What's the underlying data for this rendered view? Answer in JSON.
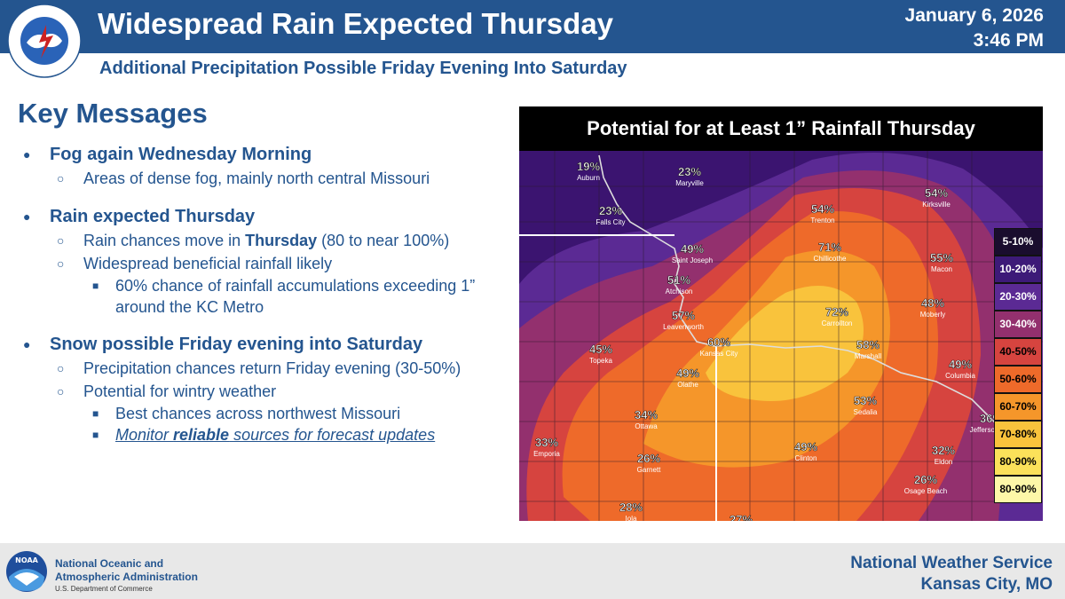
{
  "header": {
    "title": "Widespread Rain Expected Thursday",
    "subtitle": "Additional Precipitation Possible Friday Evening Into Saturday",
    "date": "January 6, 2026",
    "time": "3:46 PM",
    "logo_text": "NATIONAL WEATHER SERVICE"
  },
  "key_messages": {
    "title": "Key Messages",
    "fog": {
      "heading": "Fog again Wednesday Morning",
      "detail": "Areas of dense fog, mainly north central Missouri"
    },
    "rain": {
      "heading": "Rain expected Thursday",
      "chances_pre": "Rain chances move in ",
      "chances_bold": "Thursday",
      "chances_post": " (80 to near 100%)",
      "beneficial": "Widespread beneficial rainfall likely",
      "accumulation": "60% chance of rainfall accumulations exceeding 1” around the KC Metro"
    },
    "snow": {
      "heading": "Snow possible Friday evening into Saturday",
      "precip": "Precipitation chances return Friday evening (30-50%)",
      "wintry": "Potential for wintry weather",
      "best": "Best chances across northwest Missouri",
      "monitor_pre": "Monitor ",
      "monitor_bold": "reliable",
      "monitor_post": " sources for forecast updates"
    }
  },
  "map": {
    "title": "Potential for at Least 1” Rainfall Thursday",
    "legend": [
      {
        "label": "5-10%",
        "color": "#1a0d2e",
        "text": "#ffffff"
      },
      {
        "label": "10-20%",
        "color": "#3d1a78",
        "text": "#ffffff"
      },
      {
        "label": "20-30%",
        "color": "#5b2a94",
        "text": "#ffffff"
      },
      {
        "label": "30-40%",
        "color": "#93306e",
        "text": "#ffffff"
      },
      {
        "label": "40-50%",
        "color": "#d6443f",
        "text": "#000000"
      },
      {
        "label": "50-60%",
        "color": "#ee6a2a",
        "text": "#000000"
      },
      {
        "label": "60-70%",
        "color": "#f5962a",
        "text": "#000000"
      },
      {
        "label": "70-80%",
        "color": "#f9c33c",
        "text": "#000000"
      },
      {
        "label": "80-90%",
        "color": "#fbe15a",
        "text": "#000000"
      },
      {
        "label": "80-90%",
        "color": "#fdf7a8",
        "text": "#000000"
      }
    ],
    "cities": [
      {
        "pct": "19%",
        "name": "Auburn"
      },
      {
        "pct": "23%",
        "name": "Maryville"
      },
      {
        "pct": "23%",
        "name": "Falls City"
      },
      {
        "pct": "54%",
        "name": "Trenton"
      },
      {
        "pct": "54%",
        "name": "Kirksville"
      },
      {
        "pct": "49%",
        "name": "Saint Joseph"
      },
      {
        "pct": "71%",
        "name": "Chillicothe"
      },
      {
        "pct": "55%",
        "name": "Macon"
      },
      {
        "pct": "51%",
        "name": "Atchison"
      },
      {
        "pct": "57%",
        "name": "Leavenworth"
      },
      {
        "pct": "72%",
        "name": "Carrollton"
      },
      {
        "pct": "48%",
        "name": "Moberly"
      },
      {
        "pct": "60%",
        "name": "Kansas City"
      },
      {
        "pct": "58%",
        "name": "Marshall"
      },
      {
        "pct": "45%",
        "name": "Topeka"
      },
      {
        "pct": "49%",
        "name": "Olathe"
      },
      {
        "pct": "49%",
        "name": "Columbia"
      },
      {
        "pct": "53%",
        "name": "Sedalia"
      },
      {
        "pct": "34%",
        "name": "Ottawa"
      },
      {
        "pct": "36%",
        "name": "Jefferson City"
      },
      {
        "pct": "33%",
        "name": "Emporia"
      },
      {
        "pct": "49%",
        "name": "Clinton"
      },
      {
        "pct": "32%",
        "name": "Eldon"
      },
      {
        "pct": "26%",
        "name": "Garnett"
      },
      {
        "pct": "26%",
        "name": "Osage Beach"
      },
      {
        "pct": "28%",
        "name": "Iola"
      },
      {
        "pct": "27%",
        "name": ""
      }
    ]
  },
  "footer": {
    "noaa_name_1": "National Oceanic and",
    "noaa_name_2": "Atmospheric Administration",
    "noaa_dept": "U.S. Department of Commerce",
    "noaa_logo_text": "NOAA",
    "office_1": "National Weather Service",
    "office_2": "Kansas City, MO"
  }
}
